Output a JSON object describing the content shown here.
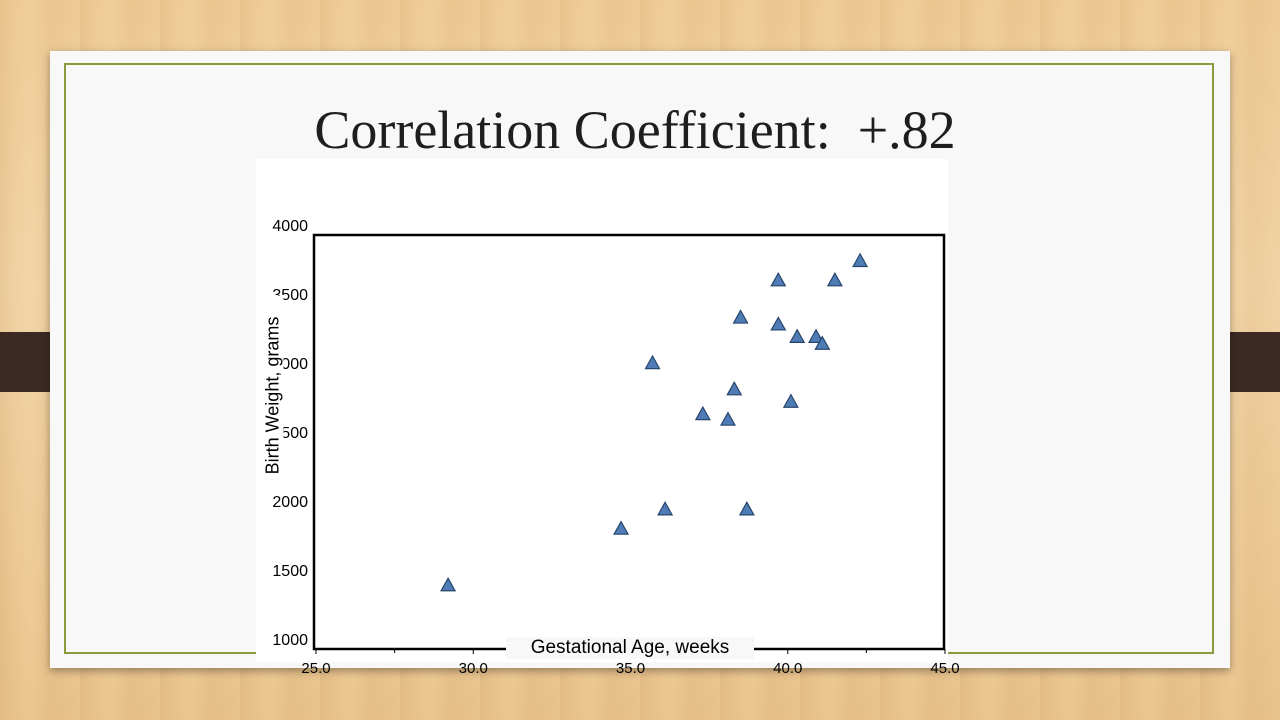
{
  "slide": {
    "title": "Correlation Coefficient:  +.82"
  },
  "chart_data": {
    "type": "scatter",
    "xlabel": "Gestational Age, weeks",
    "ylabel": "Birth Weight, grams",
    "xlim": [
      25.0,
      45.0
    ],
    "ylim": [
      1000,
      4000
    ],
    "x_ticks": [
      "25.0",
      "30.0",
      "35.0",
      "40.0",
      "45.0"
    ],
    "y_ticks": [
      "1000",
      "1500",
      "2000",
      "2500",
      "3000",
      "3500",
      "4000"
    ],
    "grid": false,
    "marker": "triangle",
    "marker_color": "#4f7cb5",
    "marker_edge_color": "#27466e",
    "points": [
      {
        "x": 29.2,
        "y": 1390
      },
      {
        "x": 34.7,
        "y": 1800
      },
      {
        "x": 35.7,
        "y": 3000
      },
      {
        "x": 36.1,
        "y": 1940
      },
      {
        "x": 37.3,
        "y": 2630
      },
      {
        "x": 38.1,
        "y": 2590
      },
      {
        "x": 38.3,
        "y": 2810
      },
      {
        "x": 38.5,
        "y": 3330
      },
      {
        "x": 38.7,
        "y": 1940
      },
      {
        "x": 39.7,
        "y": 3600
      },
      {
        "x": 39.7,
        "y": 3280
      },
      {
        "x": 40.1,
        "y": 2720
      },
      {
        "x": 40.3,
        "y": 3190
      },
      {
        "x": 40.9,
        "y": 3190
      },
      {
        "x": 41.1,
        "y": 3140
      },
      {
        "x": 41.5,
        "y": 3600
      },
      {
        "x": 42.3,
        "y": 3740
      }
    ]
  }
}
